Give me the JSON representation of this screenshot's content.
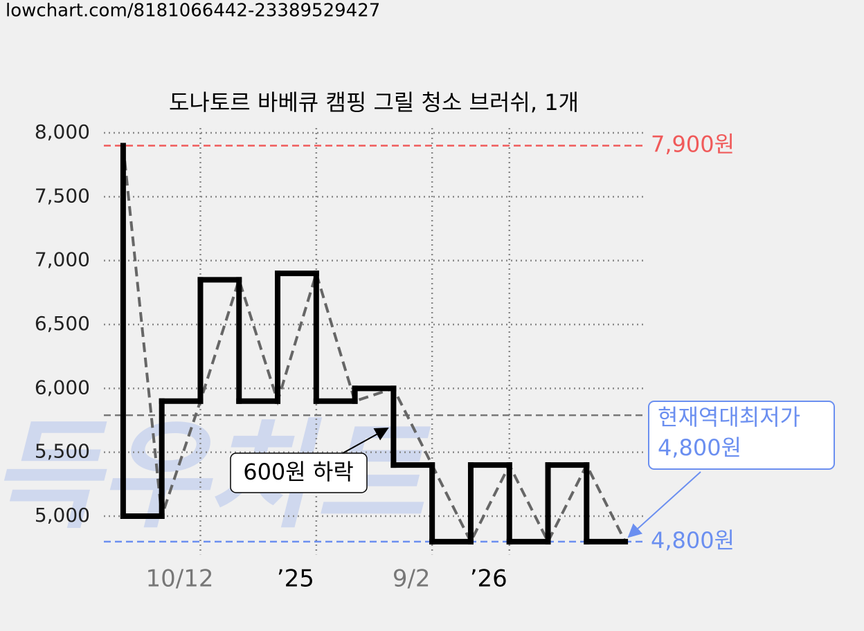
{
  "header": "lowchart.com/8181066442-23389529427",
  "watermark": "득우차트",
  "chart_data": {
    "type": "step",
    "title": "도나토르 바베큐 캠핑 그릴 청소 브러쉬, 1개",
    "x": [
      0,
      1,
      2,
      3,
      4,
      5,
      6,
      7,
      8,
      9,
      10,
      11,
      12,
      13
    ],
    "series": [
      {
        "color": "#000000",
        "trend_color": "#666666",
        "values": [
          7900,
          5000,
          5900,
          6850,
          5900,
          6900,
          5900,
          6000,
          5400,
          4800,
          5400,
          4800,
          5400,
          4800
        ]
      }
    ],
    "xlim": [
      -0.5,
      13.5
    ],
    "xticks": [
      {
        "value": 2,
        "label": "10/12",
        "color": "#777777"
      },
      {
        "value": 5,
        "label": "’25",
        "color": "#000000"
      },
      {
        "value": 8,
        "label": "9/2",
        "color": "#777777"
      },
      {
        "value": 10,
        "label": "’26",
        "color": "#000000"
      }
    ],
    "ylim": [
      4700,
      8000
    ],
    "yticks": [
      {
        "value": 5000,
        "label": "5,000"
      },
      {
        "value": 5500,
        "label": "5,500"
      },
      {
        "value": 6000,
        "label": "6,000"
      },
      {
        "value": 6500,
        "label": "6,500"
      },
      {
        "value": 7000,
        "label": "7,000"
      },
      {
        "value": 7500,
        "label": "7,500"
      },
      {
        "value": 8000,
        "label": "8,000"
      }
    ],
    "grid": true,
    "max_line": {
      "value": 7900,
      "label": "7,900원",
      "color": "#f05a5a"
    },
    "min_line": {
      "value": 4800,
      "label": "4,800원",
      "color": "#6b8ff0"
    },
    "average_line": {
      "value": 5790,
      "color": "#777777"
    },
    "annotations": [
      {
        "lines": [
          "현재역대최저가",
          "4,800원"
        ],
        "color": "#6b8ff0"
      },
      {
        "text": "600원 하락",
        "color": "#000000"
      }
    ]
  }
}
